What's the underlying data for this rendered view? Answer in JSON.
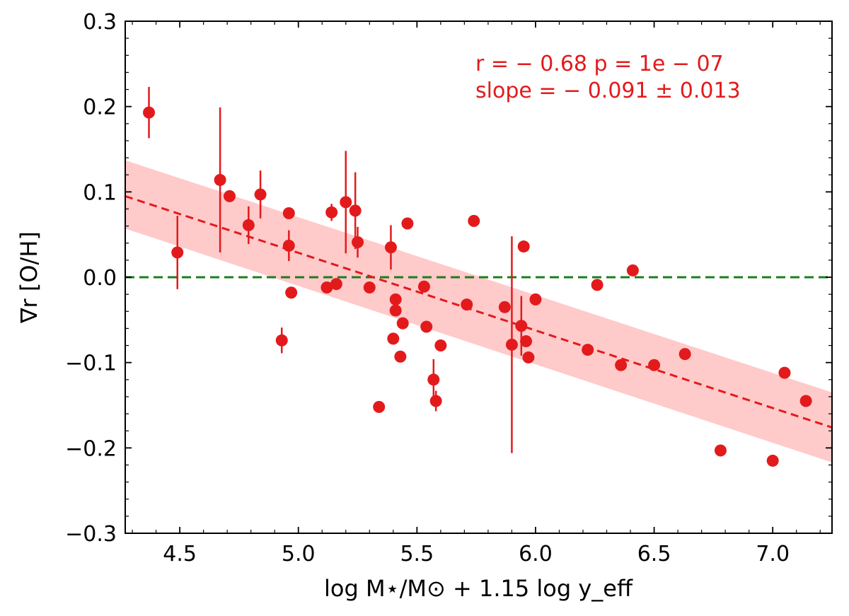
{
  "chart_data": {
    "type": "scatter",
    "title": "",
    "xlabel": "log M⋆/M⊙ + 1.15 log y_eff",
    "ylabel": "∇r [O/H]",
    "xlim": [
      4.27,
      7.25
    ],
    "ylim": [
      -0.3,
      0.3
    ],
    "xticks": [
      4.5,
      5.0,
      5.5,
      6.0,
      6.5,
      7.0
    ],
    "xtick_labels": [
      "4.5",
      "5.0",
      "5.5",
      "6.0",
      "6.5",
      "7.0"
    ],
    "yticks": [
      -0.3,
      -0.2,
      -0.1,
      0.0,
      0.1,
      0.2,
      0.3
    ],
    "ytick_labels": [
      "−0.3",
      "−0.2",
      "−0.1",
      "0.0",
      "0.1",
      "0.2",
      "0.3"
    ],
    "grid": false,
    "annotations": [
      {
        "text": "r = − 0.68  p = 1e − 07",
        "position": "top-right"
      },
      {
        "text": "slope = − 0.091 ± 0.013",
        "position": "top-right"
      }
    ],
    "reference_line": {
      "y": 0.0,
      "style": "dashed",
      "color": "#1a7f1a"
    },
    "fit_line": {
      "x": [
        4.27,
        7.25
      ],
      "y": [
        0.095,
        -0.176
      ],
      "style": "dashed",
      "color": "#e31a1c"
    },
    "fit_band": {
      "x": [
        4.27,
        7.25
      ],
      "upper": [
        0.137,
        -0.135
      ],
      "lower": [
        0.057,
        -0.217
      ],
      "color": "#ffb3b3"
    },
    "series": [
      {
        "color": "#e31a1c",
        "points": [
          {
            "x": 4.37,
            "y": 0.193,
            "err": 0.03
          },
          {
            "x": 4.49,
            "y": 0.029,
            "err": 0.043
          },
          {
            "x": 4.67,
            "y": 0.114,
            "err": 0.085
          },
          {
            "x": 4.71,
            "y": 0.095
          },
          {
            "x": 4.79,
            "y": 0.061,
            "err": 0.022
          },
          {
            "x": 4.84,
            "y": 0.097,
            "err": 0.028
          },
          {
            "x": 4.93,
            "y": -0.074,
            "err": 0.015
          },
          {
            "x": 4.96,
            "y": 0.075
          },
          {
            "x": 4.96,
            "y": 0.037,
            "err": 0.018
          },
          {
            "x": 4.97,
            "y": -0.018
          },
          {
            "x": 5.12,
            "y": -0.012
          },
          {
            "x": 5.14,
            "y": 0.076,
            "err": 0.01
          },
          {
            "x": 5.16,
            "y": -0.008
          },
          {
            "x": 5.2,
            "y": 0.088,
            "err": 0.06
          },
          {
            "x": 5.24,
            "y": 0.078,
            "err": 0.045
          },
          {
            "x": 5.25,
            "y": 0.041,
            "err": 0.018
          },
          {
            "x": 5.3,
            "y": -0.012
          },
          {
            "x": 5.34,
            "y": -0.152
          },
          {
            "x": 5.39,
            "y": 0.035,
            "err": 0.026
          },
          {
            "x": 5.4,
            "y": -0.072
          },
          {
            "x": 5.41,
            "y": -0.026
          },
          {
            "x": 5.41,
            "y": -0.039
          },
          {
            "x": 5.43,
            "y": -0.093
          },
          {
            "x": 5.44,
            "y": -0.054
          },
          {
            "x": 5.46,
            "y": 0.063
          },
          {
            "x": 5.53,
            "y": -0.011
          },
          {
            "x": 5.54,
            "y": -0.058
          },
          {
            "x": 5.57,
            "y": -0.12,
            "err": 0.024
          },
          {
            "x": 5.58,
            "y": -0.145,
            "err": 0.012
          },
          {
            "x": 5.6,
            "y": -0.08
          },
          {
            "x": 5.71,
            "y": -0.032
          },
          {
            "x": 5.74,
            "y": 0.066
          },
          {
            "x": 5.87,
            "y": -0.035
          },
          {
            "x": 5.9,
            "y": -0.079,
            "err": 0.127
          },
          {
            "x": 5.94,
            "y": -0.057,
            "err": 0.035
          },
          {
            "x": 5.95,
            "y": 0.036
          },
          {
            "x": 5.96,
            "y": -0.075
          },
          {
            "x": 5.97,
            "y": -0.094
          },
          {
            "x": 6.0,
            "y": -0.026
          },
          {
            "x": 6.22,
            "y": -0.085
          },
          {
            "x": 6.26,
            "y": -0.009
          },
          {
            "x": 6.36,
            "y": -0.103
          },
          {
            "x": 6.41,
            "y": 0.008
          },
          {
            "x": 6.5,
            "y": -0.103
          },
          {
            "x": 6.63,
            "y": -0.09
          },
          {
            "x": 6.78,
            "y": -0.203
          },
          {
            "x": 7.0,
            "y": -0.215
          },
          {
            "x": 7.05,
            "y": -0.112
          },
          {
            "x": 7.14,
            "y": -0.145
          }
        ]
      }
    ]
  }
}
